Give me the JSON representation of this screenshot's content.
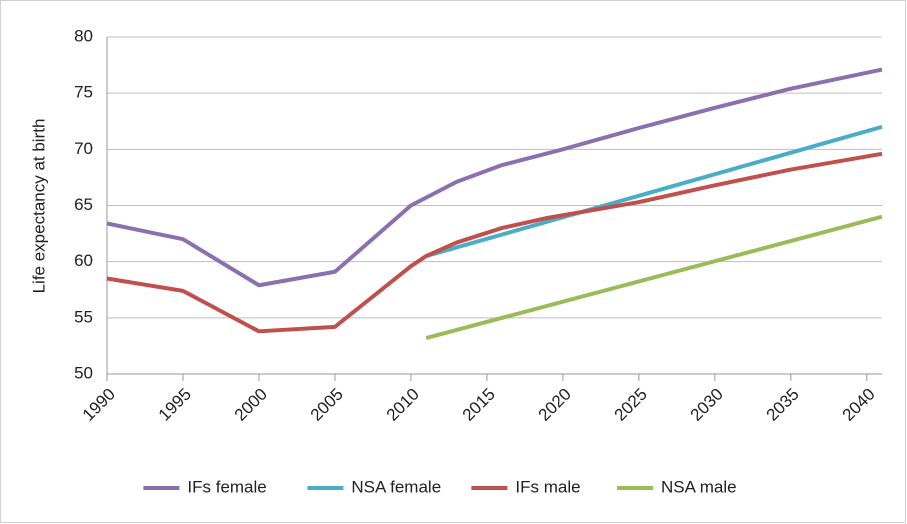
{
  "chart_data": {
    "type": "line",
    "ylabel": "Life expectancy at birth",
    "xlim": [
      1990,
      2041
    ],
    "xticks": [
      1990,
      1995,
      2000,
      2005,
      2010,
      2015,
      2020,
      2025,
      2030,
      2035,
      2040
    ],
    "ylim": [
      50,
      80
    ],
    "yticks": [
      50,
      55,
      60,
      65,
      70,
      75,
      80
    ],
    "grid": true,
    "legend": "bottom",
    "series": [
      {
        "name": "IFs female",
        "color": "#8c6fae",
        "x": [
          1990,
          1995,
          2000,
          2005,
          2010,
          2013,
          2016,
          2020,
          2025,
          2030,
          2035,
          2041
        ],
        "values": [
          63.4,
          62.0,
          57.9,
          59.1,
          65.0,
          67.1,
          68.6,
          70.0,
          71.9,
          73.7,
          75.4,
          77.1
        ]
      },
      {
        "name": "NSA female",
        "color": "#4bacc6",
        "x": [
          2011,
          2041
        ],
        "values": [
          60.5,
          72.0
        ]
      },
      {
        "name": "IFs male",
        "color": "#c0504d",
        "x": [
          1990,
          1995,
          2000,
          2005,
          2010,
          2011,
          2013,
          2016,
          2019,
          2022,
          2025,
          2030,
          2035,
          2041
        ],
        "values": [
          58.5,
          57.4,
          53.8,
          54.2,
          59.6,
          60.5,
          61.7,
          63.0,
          63.9,
          64.6,
          65.3,
          66.8,
          68.2,
          69.6
        ]
      },
      {
        "name": "NSA male",
        "color": "#9bbb59",
        "x": [
          2011,
          2041
        ],
        "values": [
          53.2,
          64.0
        ]
      }
    ]
  }
}
